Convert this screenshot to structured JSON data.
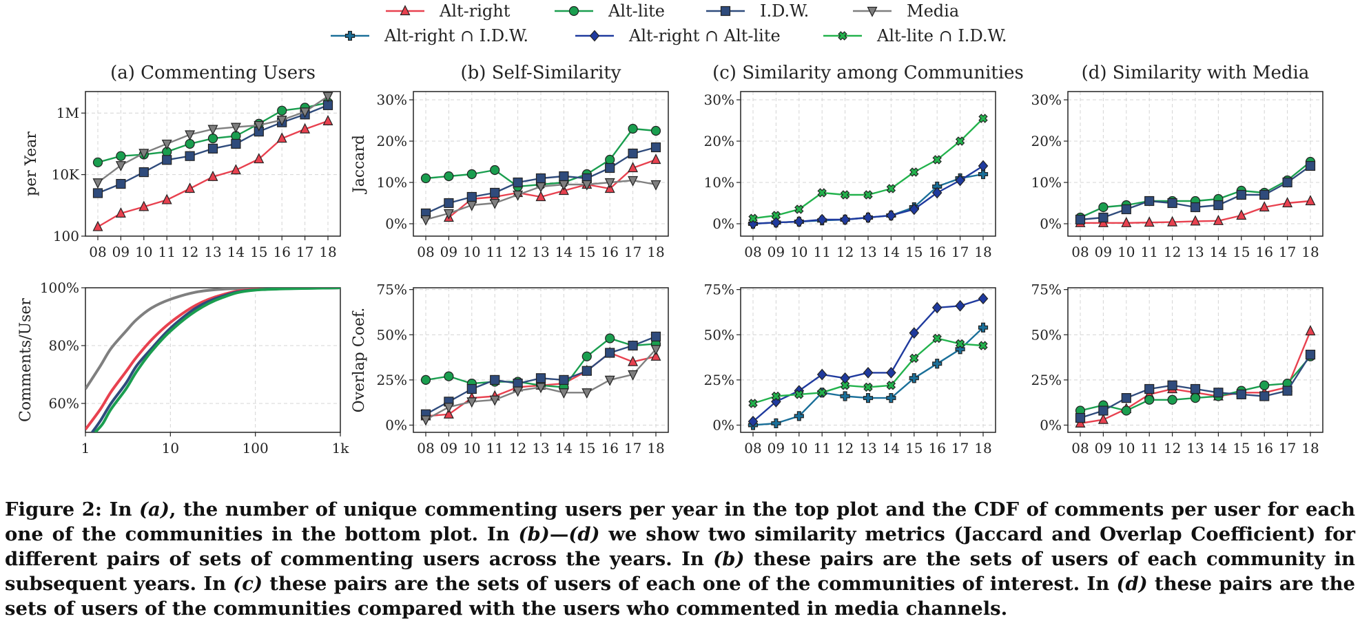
{
  "legend": {
    "row1": [
      {
        "label": "Alt-right",
        "key": "altright"
      },
      {
        "label": "Alt-lite",
        "key": "altlite"
      },
      {
        "label": "I.D.W.",
        "key": "idw"
      },
      {
        "label": "Media",
        "key": "media"
      }
    ],
    "row2": [
      {
        "label": "Alt-right ∩ I.D.W.",
        "key": "ar_idw"
      },
      {
        "label": "Alt-right ∩ Alt-lite",
        "key": "ar_al"
      },
      {
        "label": "Alt-lite ∩ I.D.W.",
        "key": "al_idw"
      }
    ]
  },
  "styles": {
    "altright": {
      "color": "#e8414f",
      "marker": "triangle-up"
    },
    "altlite": {
      "color": "#1a9e4f",
      "marker": "circle"
    },
    "idw": {
      "color": "#2f4b7c",
      "marker": "square"
    },
    "media": {
      "color": "#7f7f7f",
      "marker": "triangle-down"
    },
    "ar_idw": {
      "color": "#1a6f99",
      "marker": "plus"
    },
    "ar_al": {
      "color": "#1f3a9e",
      "marker": "diamond"
    },
    "al_idw": {
      "color": "#22b24c",
      "marker": "x"
    }
  },
  "years": [
    "08",
    "09",
    "10",
    "11",
    "12",
    "13",
    "14",
    "15",
    "16",
    "17",
    "18"
  ],
  "caption": {
    "parts": [
      {
        "t": "Figure 2: In ",
        "i": false
      },
      {
        "t": "(a)",
        "i": true
      },
      {
        "t": ", the number of unique commenting users per year in the top plot and the CDF of comments per user for each one of the communities in the bottom plot. In ",
        "i": false
      },
      {
        "t": "(b)",
        "i": true
      },
      {
        "t": "—",
        "i": false
      },
      {
        "t": "(d)",
        "i": true
      },
      {
        "t": " we show two similarity metrics (Jaccard and Overlap Coefficient) for different pairs of sets of commenting users across the years. In ",
        "i": false
      },
      {
        "t": "(b)",
        "i": true
      },
      {
        "t": " these pairs are the sets of users of each community in subsequent years. In ",
        "i": false
      },
      {
        "t": "(c)",
        "i": true
      },
      {
        "t": " these pairs are the sets of users of each one of the communities of interest. In ",
        "i": false
      },
      {
        "t": "(d)",
        "i": true
      },
      {
        "t": " these pairs are the sets of users of the communities compared with the users who commented in media channels.",
        "i": false
      }
    ]
  },
  "chart_data": [
    {
      "id": "a_top",
      "type": "line",
      "title": "(a) Commenting Users",
      "ylabel": "per Year",
      "xlabel": "",
      "yscale": "log",
      "ylim": [
        100,
        5000000
      ],
      "yticks": [
        {
          "v": 100,
          "label": "100"
        },
        {
          "v": 10000,
          "label": "10K"
        },
        {
          "v": 1000000,
          "label": "1M"
        }
      ],
      "x": [
        "08",
        "09",
        "10",
        "11",
        "12",
        "13",
        "14",
        "15",
        "16",
        "17",
        "18"
      ],
      "grid": true,
      "series": [
        {
          "name": "Alt-right",
          "key": "altright",
          "values": [
            200,
            550,
            900,
            1500,
            3500,
            8500,
            14000,
            32000,
            150000,
            300000,
            550000
          ]
        },
        {
          "name": "Alt-lite",
          "key": "altlite",
          "values": [
            25000,
            40000,
            45000,
            55000,
            100000,
            150000,
            180000,
            450000,
            1200000,
            1500000,
            2200000
          ]
        },
        {
          "name": "I.D.W.",
          "key": "idw",
          "values": [
            2500,
            5000,
            12000,
            30000,
            40000,
            70000,
            100000,
            250000,
            500000,
            900000,
            1800000
          ]
        },
        {
          "name": "Media",
          "key": "media",
          "values": [
            5500,
            20000,
            50000,
            100000,
            200000,
            300000,
            350000,
            400000,
            600000,
            1100000,
            3500000
          ]
        }
      ]
    },
    {
      "id": "b_top",
      "type": "line",
      "title": "(b) Self-Similarity",
      "ylabel": "Jaccard",
      "xlabel": "",
      "yscale": "linear",
      "ylim": [
        -3,
        32
      ],
      "yticks": [
        {
          "v": 0,
          "label": "0%"
        },
        {
          "v": 10,
          "label": "10%"
        },
        {
          "v": 20,
          "label": "20%"
        },
        {
          "v": 30,
          "label": "30%"
        }
      ],
      "x": [
        "08",
        "09",
        "10",
        "11",
        "12",
        "13",
        "14",
        "15",
        "16",
        "17",
        "18"
      ],
      "grid": true,
      "series": [
        {
          "name": "Alt-right",
          "key": "altright",
          "values": [
            null,
            1.5,
            6,
            6.5,
            7.5,
            6.5,
            8,
            9.5,
            8.5,
            13.5,
            15.5
          ]
        },
        {
          "name": "Alt-lite",
          "key": "altlite",
          "values": [
            11,
            11.5,
            12,
            13,
            9,
            9.5,
            10,
            12,
            15.5,
            23,
            22.5
          ]
        },
        {
          "name": "I.D.W.",
          "key": "idw",
          "values": [
            2.5,
            5,
            6.5,
            7.5,
            10,
            11,
            11.5,
            11,
            13.5,
            17,
            18.5
          ]
        },
        {
          "name": "Media",
          "key": "media",
          "values": [
            1,
            2.5,
            4.5,
            5,
            7,
            9,
            9.5,
            9.5,
            10,
            10.5,
            9.5
          ]
        }
      ]
    },
    {
      "id": "c_top",
      "type": "line",
      "title": "(c) Similarity among Communities",
      "ylabel": "",
      "xlabel": "",
      "yscale": "linear",
      "ylim": [
        -3,
        32
      ],
      "yticks": [
        {
          "v": 0,
          "label": "0%"
        },
        {
          "v": 10,
          "label": "10%"
        },
        {
          "v": 20,
          "label": "20%"
        },
        {
          "v": 30,
          "label": "30%"
        }
      ],
      "x": [
        "08",
        "09",
        "10",
        "11",
        "12",
        "13",
        "14",
        "15",
        "16",
        "17",
        "18"
      ],
      "grid": true,
      "series": [
        {
          "name": "Alt-right ∩ I.D.W.",
          "key": "ar_idw",
          "values": [
            0,
            0.3,
            0.5,
            0.8,
            1,
            1.5,
            2,
            4,
            9,
            11,
            12
          ]
        },
        {
          "name": "Alt-right ∩ Alt-lite",
          "key": "ar_al",
          "values": [
            0,
            0.3,
            0.5,
            1,
            1,
            1.5,
            2,
            3.5,
            7.5,
            10.5,
            14
          ]
        },
        {
          "name": "Alt-lite ∩ I.D.W.",
          "key": "al_idw",
          "values": [
            1.3,
            2,
            3.5,
            7.5,
            7,
            7,
            8.5,
            12.5,
            15.5,
            20,
            25.5
          ]
        }
      ]
    },
    {
      "id": "d_top",
      "type": "line",
      "title": "(d) Similarity with Media",
      "ylabel": "",
      "xlabel": "",
      "yscale": "linear",
      "ylim": [
        -3,
        32
      ],
      "yticks": [
        {
          "v": 0,
          "label": "0%"
        },
        {
          "v": 10,
          "label": "10%"
        },
        {
          "v": 20,
          "label": "20%"
        },
        {
          "v": 30,
          "label": "30%"
        }
      ],
      "x": [
        "08",
        "09",
        "10",
        "11",
        "12",
        "13",
        "14",
        "15",
        "16",
        "17",
        "18"
      ],
      "grid": true,
      "series": [
        {
          "name": "Alt-right",
          "key": "altright",
          "values": [
            0.2,
            0.2,
            0.2,
            0.3,
            0.4,
            0.6,
            0.7,
            2,
            4,
            5,
            5.5
          ]
        },
        {
          "name": "Alt-lite",
          "key": "altlite",
          "values": [
            1.5,
            4,
            4.5,
            5.5,
            5.5,
            5.5,
            6,
            8,
            7.5,
            10.5,
            15
          ]
        },
        {
          "name": "I.D.W.",
          "key": "idw",
          "values": [
            1,
            1.5,
            3.5,
            5.5,
            5,
            4,
            4.5,
            7,
            7,
            10,
            14
          ]
        }
      ]
    },
    {
      "id": "a_bot",
      "type": "line",
      "title": "",
      "ylabel": "Comments/User",
      "xlabel": "",
      "xscale": "log",
      "xlim": [
        1,
        1000
      ],
      "yscale": "linear",
      "ylim": [
        50,
        100
      ],
      "xticks": [
        {
          "v": 1,
          "label": "1"
        },
        {
          "v": 10,
          "label": "10"
        },
        {
          "v": 100,
          "label": "100"
        },
        {
          "v": 1000,
          "label": "1k"
        }
      ],
      "yticks": [
        {
          "v": 60,
          "label": "60%"
        },
        {
          "v": 80,
          "label": "80%"
        },
        {
          "v": 100,
          "label": "100%"
        }
      ],
      "grid": true,
      "series": [
        {
          "name": "Media",
          "key": "media",
          "x": [
            1,
            1.5,
            2,
            3,
            4,
            6,
            10,
            20,
            40,
            100,
            1000
          ],
          "values": [
            65,
            73,
            79,
            85,
            89,
            93,
            96,
            98.5,
            99.5,
            99.9,
            100
          ]
        },
        {
          "name": "Alt-right",
          "key": "altright",
          "x": [
            1,
            1.5,
            2,
            3,
            4,
            6,
            10,
            20,
            40,
            100,
            1000
          ],
          "values": [
            51,
            58,
            64,
            71,
            76,
            82,
            88,
            94,
            97.5,
            99.5,
            100
          ]
        },
        {
          "name": "I.D.W.",
          "key": "idw",
          "x": [
            1.2,
            1.5,
            2,
            3,
            4,
            6,
            10,
            20,
            40,
            100,
            1000
          ],
          "values": [
            50,
            54,
            60,
            67,
            73,
            79,
            86,
            93,
            97,
            99.3,
            100
          ]
        },
        {
          "name": "Alt-lite",
          "key": "altlite",
          "x": [
            1.3,
            1.6,
            2,
            3,
            4,
            6,
            10,
            20,
            40,
            100,
            1000
          ],
          "values": [
            50,
            53,
            58,
            65,
            71,
            78,
            85,
            92,
            96.5,
            99.2,
            100
          ]
        }
      ]
    },
    {
      "id": "b_bot",
      "type": "line",
      "title": "",
      "ylabel": "Overlap Coef.",
      "xlabel": "",
      "yscale": "linear",
      "ylim": [
        -4,
        76
      ],
      "yticks": [
        {
          "v": 0,
          "label": "0%"
        },
        {
          "v": 25,
          "label": "25%"
        },
        {
          "v": 50,
          "label": "50%"
        },
        {
          "v": 75,
          "label": "75%"
        }
      ],
      "x": [
        "08",
        "09",
        "10",
        "11",
        "12",
        "13",
        "14",
        "15",
        "16",
        "17",
        "18"
      ],
      "grid": true,
      "series": [
        {
          "name": "Alt-right",
          "key": "altright",
          "values": [
            5,
            6,
            15,
            16,
            21,
            22,
            23,
            30,
            40,
            35,
            38
          ]
        },
        {
          "name": "Alt-lite",
          "key": "altlite",
          "values": [
            25,
            27,
            23,
            24,
            24,
            22,
            21,
            38,
            48,
            44,
            45
          ]
        },
        {
          "name": "I.D.W.",
          "key": "idw",
          "values": [
            6,
            13,
            20,
            25,
            23,
            26,
            25,
            30,
            40,
            44,
            49
          ]
        },
        {
          "name": "Media",
          "key": "media",
          "values": [
            3,
            10,
            13,
            14,
            19,
            21,
            18,
            18,
            25,
            28,
            42
          ]
        }
      ]
    },
    {
      "id": "c_bot",
      "type": "line",
      "title": "",
      "ylabel": "",
      "xlabel": "",
      "yscale": "linear",
      "ylim": [
        -4,
        76
      ],
      "yticks": [
        {
          "v": 0,
          "label": "0%"
        },
        {
          "v": 25,
          "label": "25%"
        },
        {
          "v": 50,
          "label": "50%"
        },
        {
          "v": 75,
          "label": "75%"
        }
      ],
      "x": [
        "08",
        "09",
        "10",
        "11",
        "12",
        "13",
        "14",
        "15",
        "16",
        "17",
        "18"
      ],
      "grid": true,
      "series": [
        {
          "name": "Alt-right ∩ I.D.W.",
          "key": "ar_idw",
          "values": [
            0,
            1,
            5,
            18,
            16,
            15,
            15,
            26,
            34,
            42,
            54
          ]
        },
        {
          "name": "Alt-right ∩ Alt-lite",
          "key": "ar_al",
          "values": [
            2,
            13,
            19,
            28,
            26,
            29,
            29,
            51,
            65,
            66,
            70
          ]
        },
        {
          "name": "Alt-lite ∩ I.D.W.",
          "key": "al_idw",
          "values": [
            12,
            16,
            17,
            18,
            22,
            21,
            22,
            37,
            48,
            45,
            44
          ]
        }
      ]
    },
    {
      "id": "d_bot",
      "type": "line",
      "title": "",
      "ylabel": "",
      "xlabel": "",
      "yscale": "linear",
      "ylim": [
        -4,
        76
      ],
      "yticks": [
        {
          "v": 0,
          "label": "0%"
        },
        {
          "v": 25,
          "label": "25%"
        },
        {
          "v": 50,
          "label": "50%"
        },
        {
          "v": 75,
          "label": "75%"
        }
      ],
      "x": [
        "08",
        "09",
        "10",
        "11",
        "12",
        "13",
        "14",
        "15",
        "16",
        "17",
        "18"
      ],
      "grid": true,
      "series": [
        {
          "name": "Alt-right",
          "key": "altright",
          "values": [
            1,
            3,
            9,
            17,
            20,
            18,
            16,
            18,
            18,
            21,
            52
          ]
        },
        {
          "name": "Alt-lite",
          "key": "altlite",
          "values": [
            8,
            11,
            8,
            14,
            14,
            15,
            16,
            19,
            22,
            23,
            38
          ]
        },
        {
          "name": "I.D.W.",
          "key": "idw",
          "values": [
            4,
            8,
            15,
            20,
            22,
            20,
            18,
            17,
            16,
            19,
            39
          ]
        }
      ]
    }
  ]
}
